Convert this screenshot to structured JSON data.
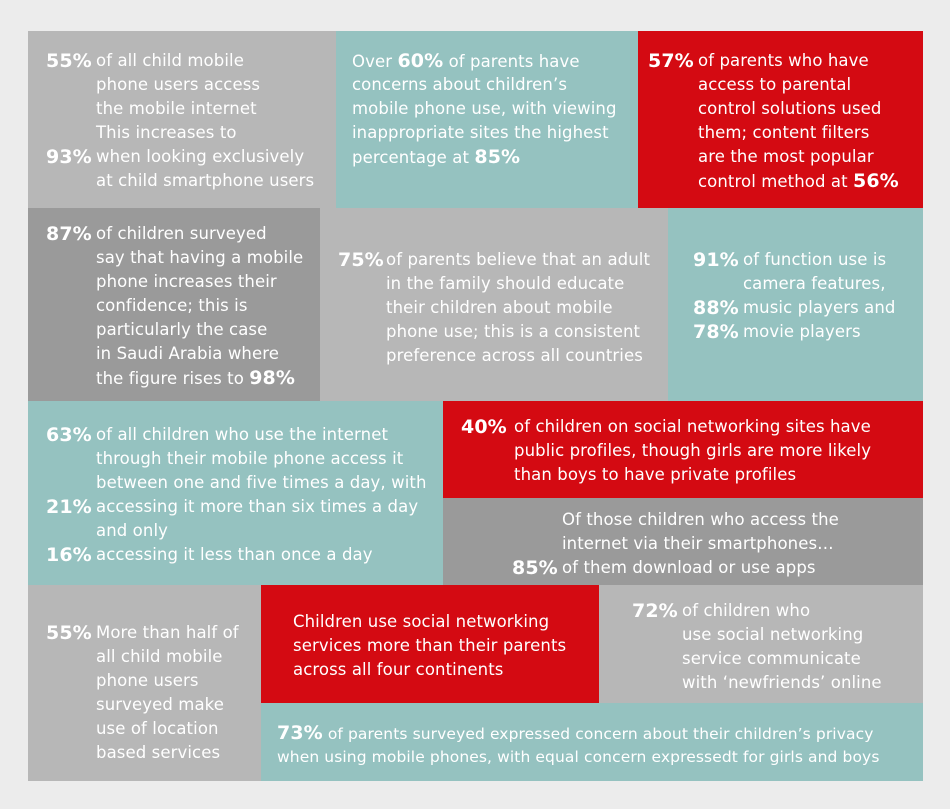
{
  "tiles": {
    "t1": {
      "pct1": "55%",
      "l1": "of all child mobile",
      "l2": "phone users access",
      "l3": "the mobile internet",
      "l4": "This increases to",
      "pct2": "93%",
      "l5": "when looking exclusively",
      "l6": "at child smartphone users"
    },
    "t2": {
      "l1a": "Over ",
      "pct": "60%",
      "l1b": " of parents have",
      "l2": "concerns about children’s",
      "l3": "mobile phone use, with viewing",
      "l4": "inappropriate sites the highest",
      "l5a": "percentage at ",
      "pct2": "85%"
    },
    "t3": {
      "pct": "57%",
      "l1": "of parents who have",
      "l2": "access to parental",
      "l3": "control solutions used",
      "l4": "them; content filters",
      "l5": "are the most popular",
      "l6a": "control method at ",
      "pct2": "56%"
    },
    "t4": {
      "pct": "87%",
      "l1": "of children surveyed",
      "l2": "say that having a mobile",
      "l3": "phone increases their",
      "l4": "confidence; this is",
      "l5": "particularly the case",
      "l6": "in Saudi Arabia where",
      "l7a": "the figure rises to ",
      "pct2": "98%"
    },
    "t5": {
      "pct": "75%",
      "l1": "of parents believe that an adult",
      "l2": "in the family should educate",
      "l3": "their children about mobile",
      "l4": "phone use; this is a consistent",
      "l5": "preference across all countries"
    },
    "t6": {
      "pct1": "91%",
      "l1": "of function use is",
      "l2": "camera features,",
      "pct2": "88%",
      "l3": "music players and",
      "pct3": "78%",
      "l4": "movie players"
    },
    "t7": {
      "pct1": "63%",
      "l1": "of all children who use the internet",
      "l2": "through their mobile phone access it",
      "l3": "between one and five times a day, with",
      "pct2": "21%",
      "l4": "accessing it more than six times a day",
      "l5": "and only",
      "pct3": "16%",
      "l6": "accessing it less than once a day"
    },
    "t8": {
      "pct": "40%",
      "l1": "of children on social networking sites have",
      "l2": "public profiles, though girls are more likely",
      "l3": "than boys to have private profiles"
    },
    "t9": {
      "l1": "Of those children who access the",
      "l2": "internet via their smartphones…",
      "pct": "85%",
      "l3": "of them download or use apps"
    },
    "t10": {
      "pct": "55%",
      "l1": "More than half of",
      "l2": "all child mobile",
      "l3": "phone users",
      "l4": "surveyed make",
      "l5": "use of location",
      "l6": "based services"
    },
    "t11": {
      "l1": "Children use social networking",
      "l2": "services more than their parents",
      "l3": "across all four continents"
    },
    "t12": {
      "pct": "72%",
      "l1": "of children who",
      "l2": "use social networking",
      "l3": "service communicate",
      "l4": "with ‘newfriends’ online"
    },
    "t13": {
      "pct": "73%",
      "l1": "of parents surveyed expressed concern about their children’s privacy",
      "l2": "when using mobile phones, with equal concern expressedt for girls and boys"
    }
  },
  "colors": {
    "light_gray": "#b7b7b7",
    "dark_gray": "#9a9a9a",
    "teal": "#95c2c0",
    "red": "#d40a12"
  }
}
